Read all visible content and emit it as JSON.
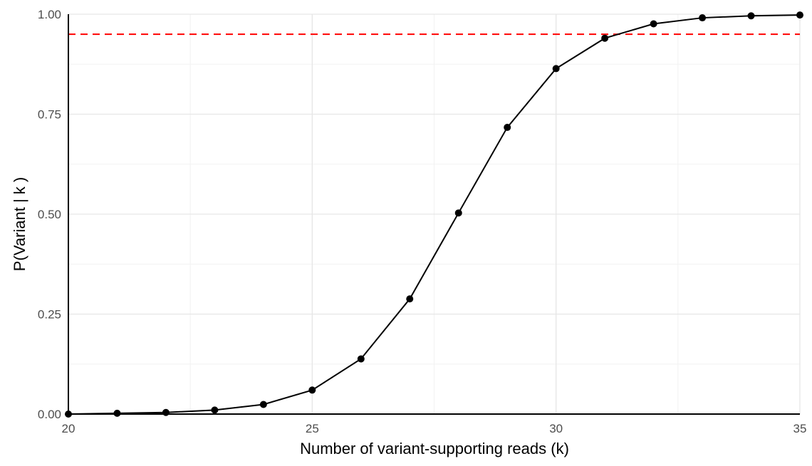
{
  "chart_data": {
    "type": "line",
    "xlabel": "Number of variant-supporting reads (k)",
    "ylabel": "P(Variant | k )",
    "xlim": [
      20,
      35
    ],
    "ylim": [
      0,
      1
    ],
    "x_ticks": [
      20,
      25,
      30,
      35
    ],
    "x_tick_labels": [
      "20",
      "25",
      "30",
      "35"
    ],
    "y_ticks": [
      0,
      0.25,
      0.5,
      0.75,
      1.0
    ],
    "y_tick_labels": [
      "0.00",
      "0.25",
      "0.50",
      "0.75",
      "1.00"
    ],
    "grid": true,
    "series": [
      {
        "x": [
          20,
          21,
          22,
          23,
          24,
          25,
          26,
          27,
          28,
          29,
          30,
          31,
          32,
          33,
          34,
          35
        ],
        "y": [
          0.0,
          0.002,
          0.004,
          0.01,
          0.024,
          0.06,
          0.138,
          0.288,
          0.503,
          0.717,
          0.864,
          0.94,
          0.976,
          0.991,
          0.996,
          0.998
        ],
        "color": "#000000",
        "markers": true
      }
    ],
    "reference_lines": [
      {
        "orientation": "horizontal",
        "y": 0.95,
        "color": "#ff0000",
        "style": "dashed"
      }
    ]
  }
}
